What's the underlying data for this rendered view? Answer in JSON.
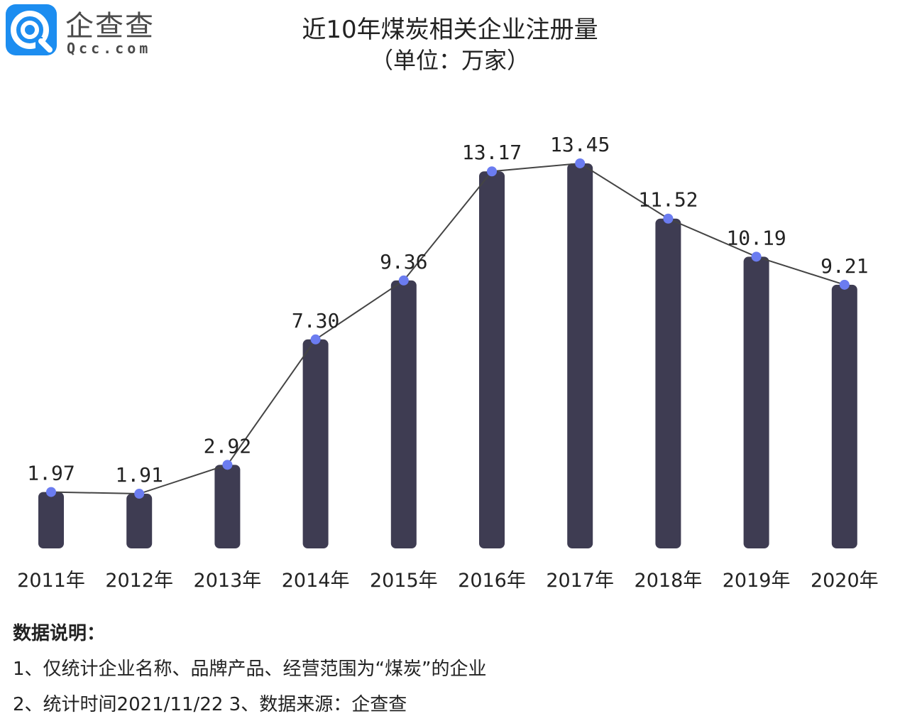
{
  "logo": {
    "name": "企查查",
    "domain": "Qcc.com"
  },
  "chart_data": {
    "type": "bar",
    "title": "近10年煤炭相关企业注册量",
    "subtitle": "（单位：万家）",
    "categories": [
      "2011年",
      "2012年",
      "2013年",
      "2014年",
      "2015年",
      "2016年",
      "2017年",
      "2018年",
      "2019年",
      "2020年"
    ],
    "series": [
      {
        "values": [
          1.97,
          1.91,
          2.92,
          7.3,
          9.36,
          13.17,
          13.45,
          11.52,
          10.19,
          9.21
        ],
        "data_labels": [
          "1.97",
          "1.91",
          "2.92",
          "7.30",
          "9.36",
          "13.17",
          "13.45",
          "11.52",
          "10.19",
          "9.21"
        ]
      }
    ],
    "overlay": "line with markers connecting bar tops",
    "grid": false,
    "legend": "none",
    "colors": {
      "bar": "#3e3c52",
      "line": "#444444",
      "marker": "#6b7cf0",
      "label": "#222222"
    }
  },
  "notes": {
    "heading": "数据说明：",
    "line1": "1、仅统计企业名称、品牌产品、经营范围为“煤炭”的企业",
    "line2": "2、统计时间2021/11/22   3、数据来源：企查查"
  }
}
